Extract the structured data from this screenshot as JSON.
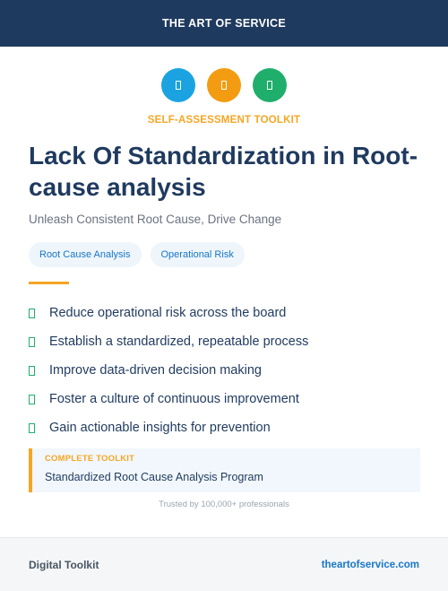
{
  "header": {
    "brand": "THE ART OF SERVICE"
  },
  "icons": [
    {
      "name": "toolkit-icon-blue",
      "color": "#1aa3e0"
    },
    {
      "name": "toolkit-icon-orange",
      "color": "#f39c12"
    },
    {
      "name": "toolkit-icon-green",
      "color": "#1fae6b"
    }
  ],
  "kicker": "SELF-ASSESSMENT TOOLKIT",
  "title": "Lack Of Standardization in Root-cause analysis",
  "subtitle": "Unleash Consistent Root Cause, Drive Change",
  "tags": [
    "Root Cause Analysis",
    "Operational Risk"
  ],
  "benefits": [
    "Reduce operational risk across the board",
    "Establish a standardized, repeatable process",
    "Improve data-driven decision making",
    "Foster a culture of continuous improvement",
    "Gain actionable insights for prevention"
  ],
  "callout": {
    "label": "COMPLETE TOOLKIT",
    "value": "Standardized Root Cause Analysis Program"
  },
  "trust": "Trusted by 100,000+ professionals",
  "footer": {
    "left": "Digital Toolkit",
    "right": "theartofservice.com"
  },
  "colors": {
    "navy": "#1f3a5f",
    "accent_orange": "#f5a623",
    "check_green": "#1fae6b",
    "link_blue": "#1877c9"
  }
}
